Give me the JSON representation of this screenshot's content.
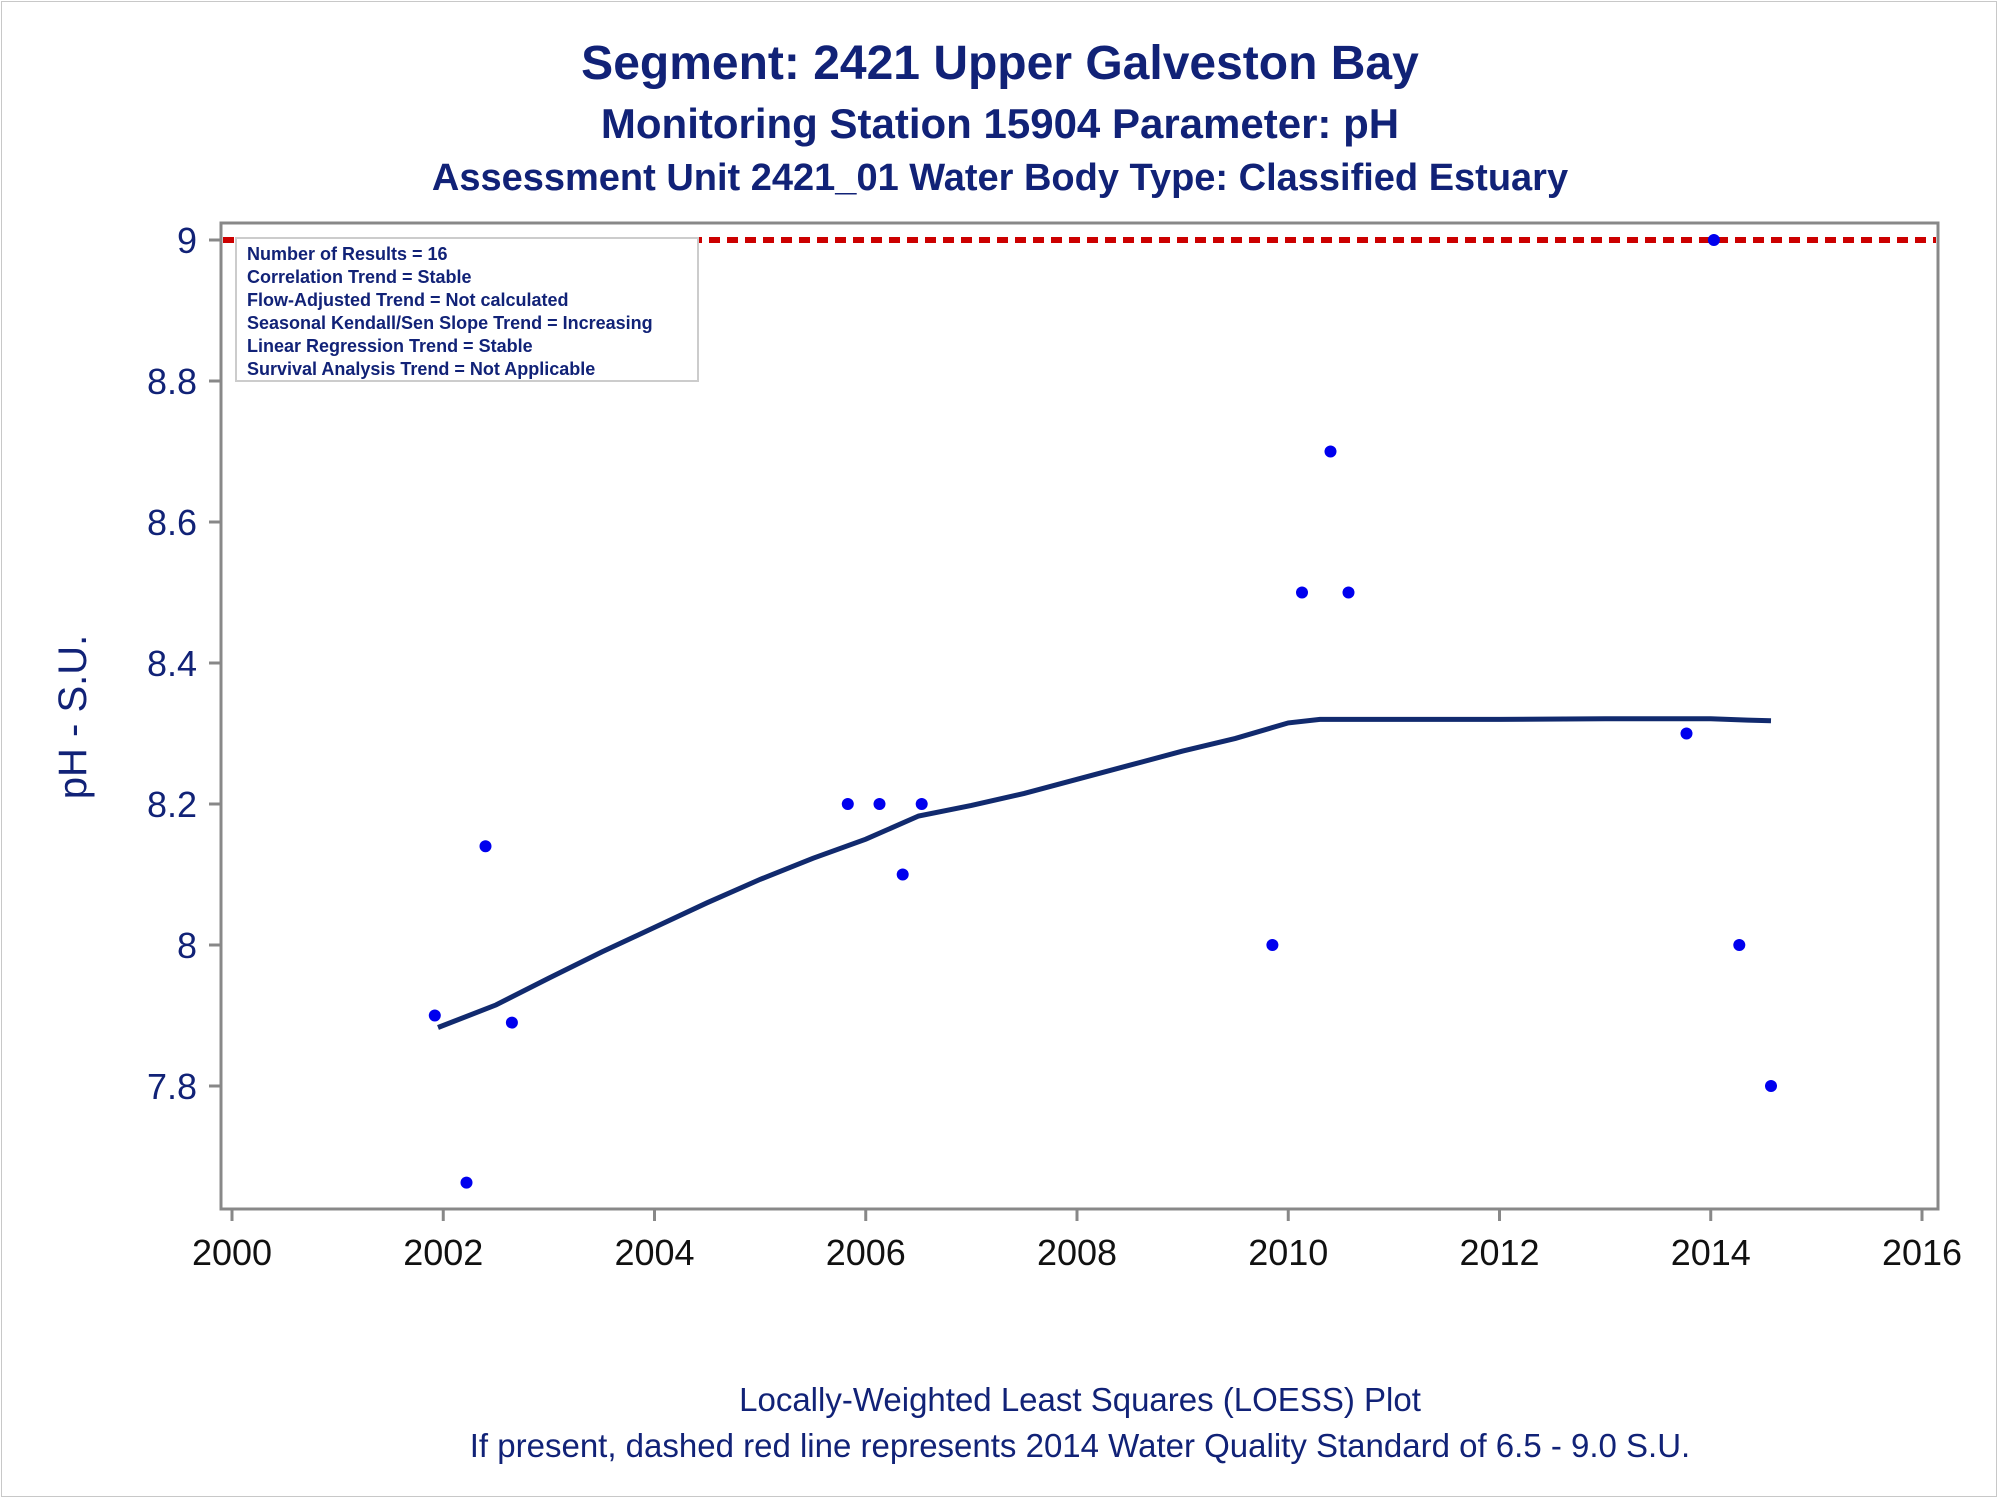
{
  "titles": {
    "line1": "Segment: 2421  Upper Galveston Bay",
    "line2": "Monitoring Station 15904 Parameter: pH",
    "line3": "Assessment Unit 2421_01   Water Body Type: Classified Estuary"
  },
  "footnotes": {
    "line1": "Locally-Weighted Least Squares (LOESS) Plot",
    "line2": "If present, dashed red line represents 2014 Water Quality Standard of 6.5 - 9.0 S.U."
  },
  "stats_box": [
    "Number of Results = 16",
    "Correlation Trend = Stable",
    "Flow-Adjusted Trend = Not calculated",
    "Seasonal Kendall/Sen Slope Trend = Increasing",
    "Linear Regression Trend = Stable",
    "Survival Analysis Trend = Not Applicable"
  ],
  "colors": {
    "points": "#0000ee",
    "loess": "#112a6e",
    "standard_line": "#cc0000",
    "text": "#112277"
  },
  "chart_data": {
    "type": "scatter",
    "title": "Segment: 2421  Upper Galveston Bay",
    "xlabel": "",
    "ylabel": "pH - S.U.",
    "xlim": [
      2000,
      2016
    ],
    "ylim": [
      7.65,
      9.0
    ],
    "x_ticks": [
      2000,
      2002,
      2004,
      2006,
      2008,
      2010,
      2012,
      2014,
      2016
    ],
    "y_ticks": [
      7.8,
      8,
      8.2,
      8.4,
      8.6,
      8.8,
      9
    ],
    "y_tick_labels": [
      "7.8",
      "8",
      "8.2",
      "8.4",
      "8.6",
      "8.8",
      "9"
    ],
    "series": [
      {
        "type": "scatter",
        "points": [
          [
            2001.92,
            7.9
          ],
          [
            2002.22,
            7.663
          ],
          [
            2002.4,
            8.14
          ],
          [
            2002.65,
            7.89
          ],
          [
            2005.83,
            8.2
          ],
          [
            2006.13,
            8.2
          ],
          [
            2006.35,
            8.1
          ],
          [
            2006.53,
            8.2
          ],
          [
            2009.85,
            8.0
          ],
          [
            2010.13,
            8.5
          ],
          [
            2010.4,
            8.7
          ],
          [
            2010.57,
            8.5
          ],
          [
            2013.77,
            8.3
          ],
          [
            2014.03,
            9.0
          ],
          [
            2014.27,
            8.0
          ],
          [
            2014.57,
            7.8
          ]
        ]
      },
      {
        "type": "line",
        "points": [
          [
            2001.95,
            7.883
          ],
          [
            2002.5,
            7.915
          ],
          [
            2003.0,
            7.953
          ],
          [
            2003.5,
            7.99
          ],
          [
            2004.0,
            8.025
          ],
          [
            2004.5,
            8.06
          ],
          [
            2005.0,
            8.093
          ],
          [
            2005.5,
            8.123
          ],
          [
            2006.0,
            8.15
          ],
          [
            2006.5,
            8.183
          ],
          [
            2007.0,
            8.198
          ],
          [
            2007.5,
            8.215
          ],
          [
            2008.0,
            8.235
          ],
          [
            2008.5,
            8.255
          ],
          [
            2009.0,
            8.275
          ],
          [
            2009.5,
            8.293
          ],
          [
            2010.0,
            8.315
          ],
          [
            2010.3,
            8.32
          ],
          [
            2011.0,
            8.32
          ],
          [
            2012.0,
            8.32
          ],
          [
            2013.0,
            8.321
          ],
          [
            2014.0,
            8.321
          ],
          [
            2014.35,
            8.319
          ],
          [
            2014.57,
            8.318
          ]
        ]
      }
    ],
    "reference_line": {
      "y": 9.0,
      "style": "dashed"
    },
    "grid": false,
    "legend": "none"
  }
}
